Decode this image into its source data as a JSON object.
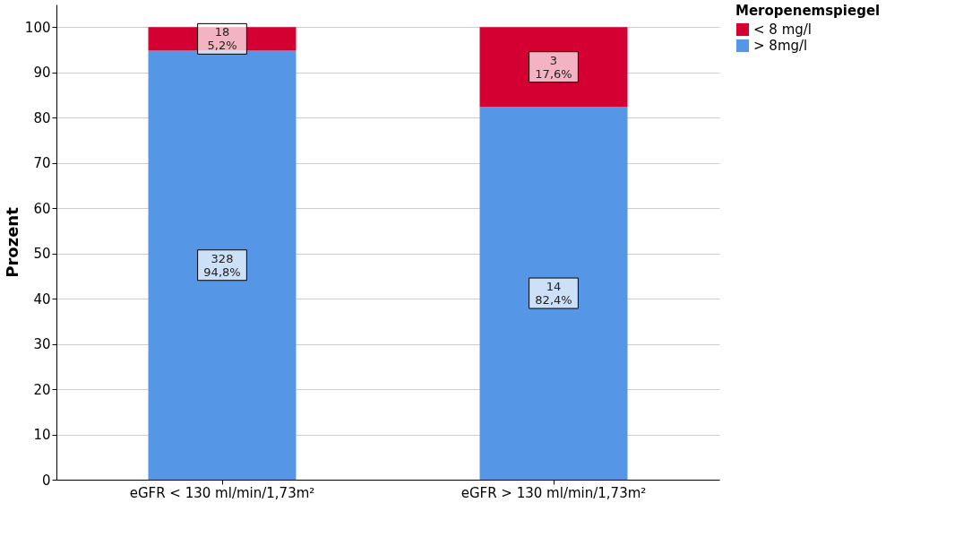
{
  "chart_data": {
    "type": "bar",
    "stacked": true,
    "ylabel": "Prozent",
    "legend_title": "Meropenemspiegel",
    "legend": "top right",
    "grid": "y",
    "categories": [
      "eGFR < 130 ml/min/1,73m²",
      "eGFR > 130 ml/min/1,73m²"
    ],
    "ylim": [
      0,
      105
    ],
    "yticks": [
      0,
      10,
      20,
      30,
      40,
      50,
      60,
      70,
      80,
      90,
      100
    ],
    "series": [
      {
        "name": "> 8mg/l",
        "color": "#5596e6",
        "values": [
          94.8,
          82.4
        ],
        "value_labels": [
          "328\n94,8%",
          "14\n82,4%"
        ]
      },
      {
        "name": "< 8 mg/l",
        "color": "#d50032",
        "values": [
          5.2,
          17.6
        ],
        "value_labels": [
          "18\n5,2%",
          "3\n17,6%"
        ]
      }
    ]
  }
}
